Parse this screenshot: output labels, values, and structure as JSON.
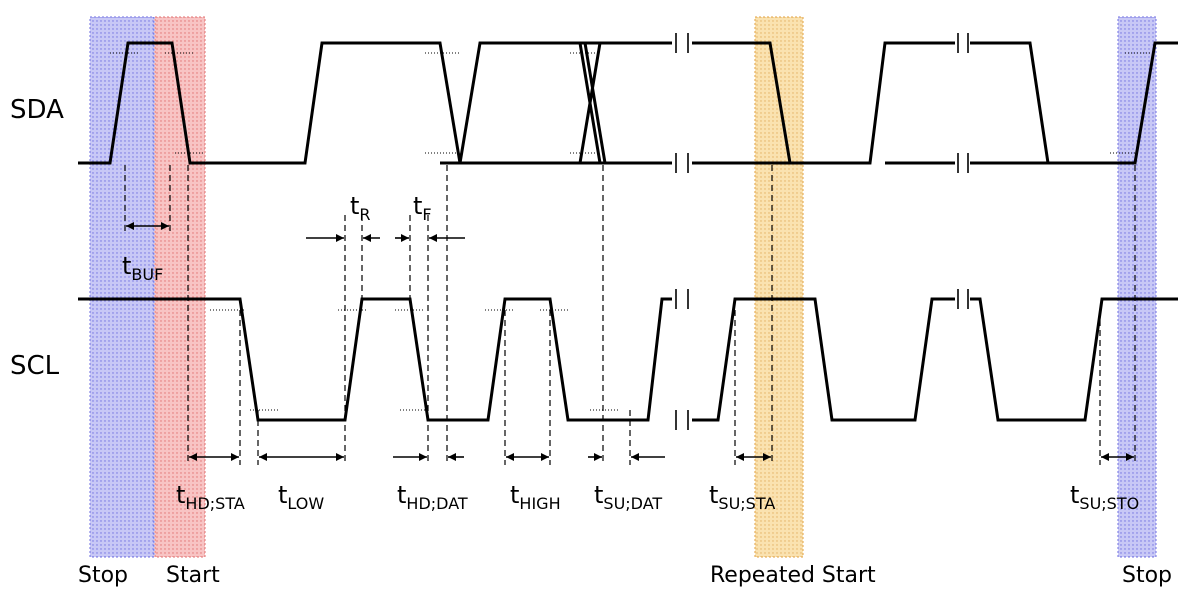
{
  "signals": {
    "sda": "SDA",
    "scl": "SCL"
  },
  "conditions": {
    "stop_left": "Stop",
    "start": "Start",
    "repeated_start": "Repeated Start",
    "stop_right": "Stop"
  },
  "timings": {
    "buf": {
      "t": "t",
      "sub": "BUF"
    },
    "r": {
      "t": "t",
      "sub": "R"
    },
    "f": {
      "t": "t",
      "sub": "F"
    },
    "hd_sta": {
      "t": "t",
      "sub": "HD;STA"
    },
    "low": {
      "t": "t",
      "sub": "LOW"
    },
    "hd_dat": {
      "t": "t",
      "sub": "HD;DAT"
    },
    "high": {
      "t": "t",
      "sub": "HIGH"
    },
    "su_dat": {
      "t": "t",
      "sub": "SU;DAT"
    },
    "su_sta": {
      "t": "t",
      "sub": "SU;STA"
    },
    "su_sto": {
      "t": "t",
      "sub": "SU;STO"
    }
  },
  "colors": {
    "stop_band": "#b8b8f4",
    "start_band": "#f6b4b4",
    "repeated_start_band": "#f8dca0"
  }
}
